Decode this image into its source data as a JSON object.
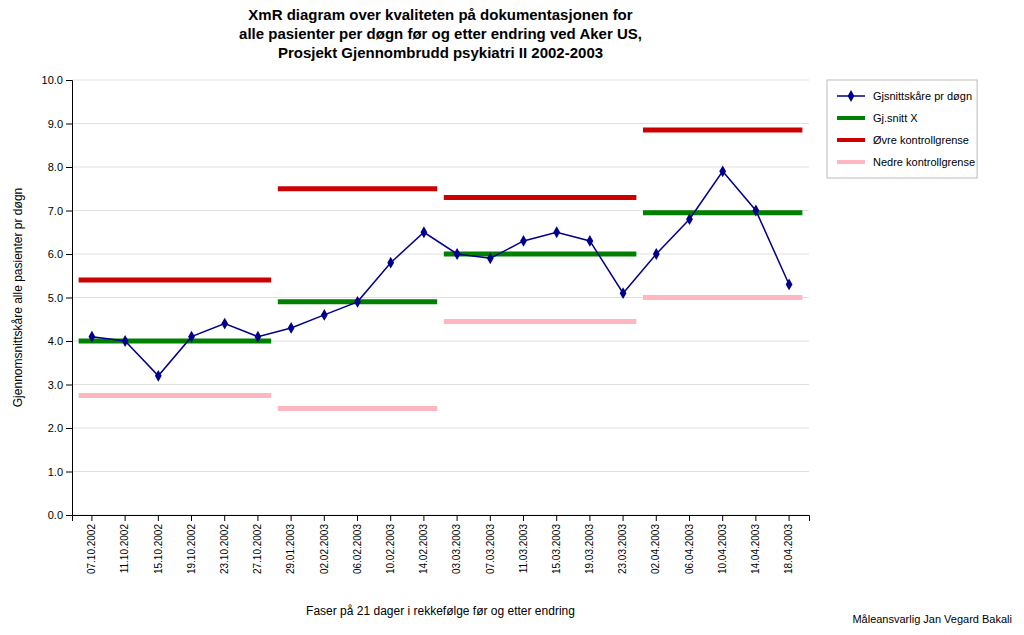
{
  "chart_data": {
    "type": "line",
    "title": "XmR diagram over kvaliteten på dokumentasjonen for\nalle pasienter per døgn før og etter endring ved Aker US,\nProsjekt Gjennombrudd psykiatri II 2002-2003",
    "x_label": "Faser på 21 dager i rekkefølge før og etter endring",
    "y_label": "Gjennomsnittskåre alle pasienter pr døgn",
    "footnote": "Måleansvarlig Jan Vegard Bakali",
    "categories": [
      "07.10.2002",
      "11.10.2002",
      "15.10.2002",
      "19.10.2002",
      "23.10.2002",
      "27.10.2002",
      "29.01.2003",
      "02.02.2003",
      "06.02.2003",
      "10.02.2003",
      "14.02.2003",
      "03.03.2003",
      "07.03.2003",
      "11.03.2003",
      "15.03.2003",
      "19.03.2003",
      "23.03.2003",
      "02.04.2003",
      "06.04.2003",
      "10.04.2003",
      "14.04.2003",
      "18.04.2003"
    ],
    "series": [
      {
        "name": "Gjsnittskåre pr døgn",
        "type": "line",
        "color": "#00008B",
        "marker": "diamond",
        "line_style": "solid",
        "values": [
          4.1,
          4.0,
          3.2,
          4.1,
          4.4,
          4.1,
          4.3,
          4.6,
          4.9,
          5.8,
          6.5,
          6.0,
          5.9,
          6.3,
          6.5,
          6.3,
          5.1,
          6.0,
          6.8,
          7.9,
          7.0,
          5.3
        ]
      },
      {
        "name": "Gj.snitt X",
        "type": "segment",
        "color": "#008000",
        "segments": [
          {
            "from": "07.10.2002",
            "to": "27.10.2002",
            "value": 4.0
          },
          {
            "from": "29.01.2003",
            "to": "14.02.2003",
            "value": 4.9
          },
          {
            "from": "03.03.2003",
            "to": "23.03.2003",
            "value": 6.0
          },
          {
            "from": "02.04.2003",
            "to": "18.04.2003",
            "value": 6.95
          }
        ]
      },
      {
        "name": "Øvre kontrollgrense",
        "type": "segment",
        "color": "#CC0000",
        "segments": [
          {
            "from": "07.10.2002",
            "to": "27.10.2002",
            "value": 5.4
          },
          {
            "from": "29.01.2003",
            "to": "14.02.2003",
            "value": 7.5
          },
          {
            "from": "03.03.2003",
            "to": "23.03.2003",
            "value": 7.3
          },
          {
            "from": "02.04.2003",
            "to": "18.04.2003",
            "value": 8.85
          }
        ]
      },
      {
        "name": "Nedre kontrollgrense",
        "type": "segment",
        "color": "#FFB6C1",
        "segments": [
          {
            "from": "07.10.2002",
            "to": "27.10.2002",
            "value": 2.75
          },
          {
            "from": "29.01.2003",
            "to": "14.02.2003",
            "value": 2.45
          },
          {
            "from": "03.03.2003",
            "to": "23.03.2003",
            "value": 4.45
          },
          {
            "from": "02.04.2003",
            "to": "18.04.2003",
            "value": 5.0
          }
        ]
      }
    ],
    "ylim": [
      0.0,
      10.0
    ],
    "yticks": [
      {
        "value": 0,
        "label": "0.0"
      },
      {
        "value": 1,
        "label": "1.0"
      },
      {
        "value": 2,
        "label": "2.0"
      },
      {
        "value": 3,
        "label": "3.0"
      },
      {
        "value": 4,
        "label": "4.0"
      },
      {
        "value": 5,
        "label": "5.0"
      },
      {
        "value": 6,
        "label": "6.0"
      },
      {
        "value": 7,
        "label": "7.0"
      },
      {
        "value": 8,
        "label": "8.0"
      },
      {
        "value": 9,
        "label": "9.0"
      },
      {
        "value": 10,
        "label": "10.0"
      }
    ],
    "grid": true,
    "legend": "upper right"
  }
}
